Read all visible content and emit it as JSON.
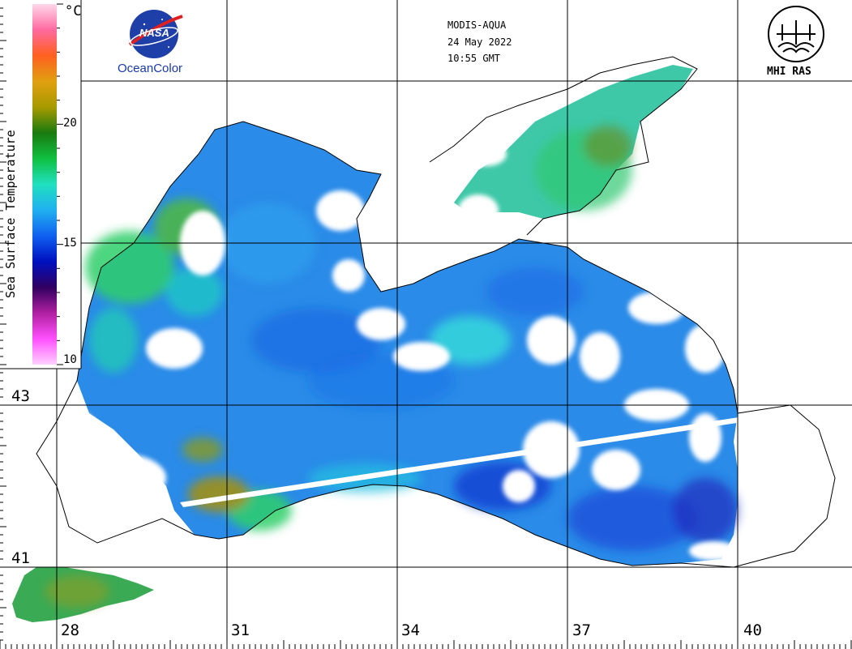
{
  "header": {
    "sensor": "MODIS-AQUA",
    "date": "24 May 2022",
    "time": "10:55 GMT"
  },
  "logos": {
    "nasa_mark": "NASA",
    "oceancolor": "OceanColor",
    "mhi": "MHI RAS"
  },
  "colorbar": {
    "title": "Sea Surface Temperature",
    "unit": "°C",
    "min": 10,
    "max": 25,
    "tick_labels": [
      "20",
      "15",
      "10"
    ],
    "colors": [
      "#ffd8e8",
      "#ff6aa0",
      "#ff6020",
      "#e0a010",
      "#a89a00",
      "#1a7a10",
      "#10c040",
      "#20e0c0",
      "#20b0f0",
      "#1060f0",
      "#0010c0",
      "#300060",
      "#b020a0",
      "#ff50ff",
      "#ffd0ff"
    ]
  },
  "axes": {
    "longitude_labels": [
      "28",
      "31",
      "34",
      "37",
      "40"
    ],
    "latitude_labels": [
      "43",
      "41"
    ]
  },
  "colors": {
    "water_blue": "#2a8be8",
    "water_deep": "#1040d8",
    "water_cyan": "#2ee0d8",
    "water_green": "#2fcf6a",
    "warm_olive": "#a09018",
    "cloud": "#ffffff",
    "coast": "#000000"
  }
}
